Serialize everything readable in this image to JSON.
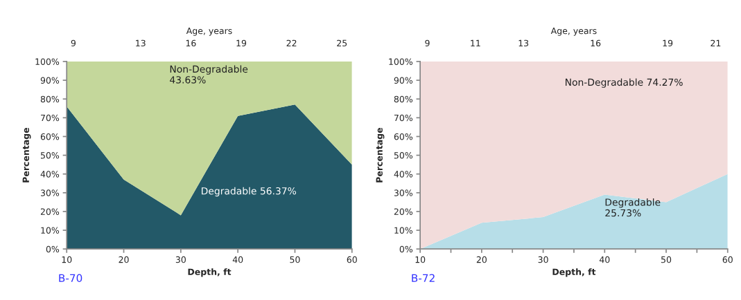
{
  "chart_data": [
    {
      "type": "area",
      "stacked": true,
      "x": [
        10,
        20,
        30,
        40,
        50,
        60
      ],
      "xlabel": "Depth, ft",
      "ylabel": "Percentage",
      "x2label": "Age, years",
      "series": [
        {
          "color": "#235968",
          "values": [
            76,
            37,
            18,
            71,
            77,
            45
          ]
        },
        {
          "color": "#c4d79b",
          "values": [
            24,
            63,
            82,
            29,
            23,
            55
          ]
        }
      ],
      "xlim": [
        10,
        60
      ],
      "xticks": [
        10,
        20,
        30,
        40,
        50,
        60
      ],
      "ylim": [
        0,
        100
      ],
      "yticks": [
        {
          "value": 0,
          "label": "0%"
        },
        {
          "value": 10,
          "label": "10%"
        },
        {
          "value": 20,
          "label": "20%"
        },
        {
          "value": 30,
          "label": "30%"
        },
        {
          "value": 40,
          "label": "40%"
        },
        {
          "value": 50,
          "label": "50%"
        },
        {
          "value": 60,
          "label": "60%"
        },
        {
          "value": 70,
          "label": "70%"
        },
        {
          "value": 80,
          "label": "80%"
        },
        {
          "value": 90,
          "label": "90%"
        },
        {
          "value": 100,
          "label": "100%"
        }
      ],
      "x2lim": [
        8.6,
        25.6
      ],
      "x2ticks": [
        9,
        13,
        16,
        19,
        22,
        25
      ],
      "annotations": [
        "Non-Degradable\n43.63%",
        "Degradable 56.37%",
        "B-70"
      ],
      "grid": false
    },
    {
      "type": "area",
      "stacked": true,
      "x": [
        10,
        20,
        30,
        40,
        50,
        60
      ],
      "xlabel": "Depth, ft",
      "ylabel": "Percentage",
      "x2label": "Age, years",
      "series": [
        {
          "color": "#b7dee8",
          "values": [
            0,
            14,
            17,
            29,
            25,
            40
          ]
        },
        {
          "color": "#f2dcdb",
          "values": [
            100,
            86,
            83,
            71,
            75,
            60
          ]
        }
      ],
      "xlim": [
        10,
        60
      ],
      "xticks": [
        10,
        {
          "value": 15,
          "label": null
        },
        20,
        {
          "value": 25,
          "label": null
        },
        30,
        {
          "value": 35,
          "label": null
        },
        40,
        {
          "value": 45,
          "label": null
        },
        50,
        {
          "value": 55,
          "label": null
        },
        60
      ],
      "ylim": [
        0,
        100
      ],
      "yticks": [
        {
          "value": 0,
          "label": "0%"
        },
        {
          "value": 10,
          "label": "10%"
        },
        {
          "value": 20,
          "label": "20%"
        },
        {
          "value": 30,
          "label": "30%"
        },
        {
          "value": 40,
          "label": "40%"
        },
        {
          "value": 50,
          "label": "50%"
        },
        {
          "value": 60,
          "label": "60%"
        },
        {
          "value": 70,
          "label": "70%"
        },
        {
          "value": 80,
          "label": "80%"
        },
        {
          "value": 90,
          "label": "90%"
        },
        {
          "value": 100,
          "label": "100%"
        }
      ],
      "x2lim": [
        8.7,
        21.5
      ],
      "x2ticks": [
        9,
        11,
        13,
        16,
        19,
        21
      ],
      "annotations": [
        "Non-Degradable 74.27%",
        "Degradable\n25.73%",
        "B-72"
      ],
      "grid": false
    }
  ]
}
